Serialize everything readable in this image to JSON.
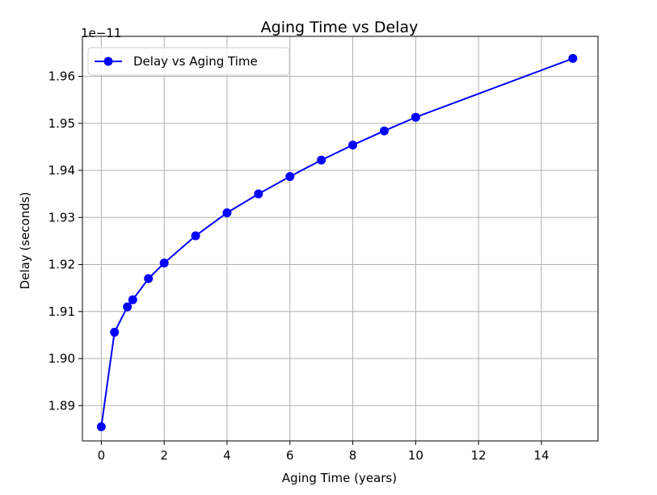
{
  "chart_data": {
    "type": "line",
    "title": "Aging Time vs Delay",
    "xlabel": "Aging Time (years)",
    "ylabel": "Delay (seconds)",
    "y_offset_label": "1e−11",
    "xlim": [
      -0.6,
      15.8
    ],
    "ylim": [
      1.8825,
      1.9685
    ],
    "xticks": [
      0,
      2,
      4,
      6,
      8,
      10,
      12,
      14
    ],
    "xtick_labels": [
      "0",
      "2",
      "4",
      "6",
      "8",
      "10",
      "12",
      "14"
    ],
    "yticks": [
      1.89,
      1.9,
      1.91,
      1.92,
      1.93,
      1.94,
      1.95,
      1.96
    ],
    "ytick_labels": [
      "1.89",
      "1.90",
      "1.91",
      "1.92",
      "1.93",
      "1.94",
      "1.95",
      "1.96"
    ],
    "grid": true,
    "legend_position": "top-left",
    "series": [
      {
        "name": "Delay vs Aging Time",
        "color": "#0000ff",
        "marker": "circle",
        "x": [
          0,
          0.42,
          0.83,
          1,
          1.5,
          2,
          3,
          4,
          5,
          6,
          7,
          8,
          9,
          10,
          15
        ],
        "y": [
          1.8855,
          1.9056,
          1.911,
          1.9125,
          1.917,
          1.9203,
          1.9261,
          1.931,
          1.935,
          1.9387,
          1.9422,
          1.9454,
          1.9484,
          1.9513,
          1.9638
        ]
      }
    ]
  }
}
